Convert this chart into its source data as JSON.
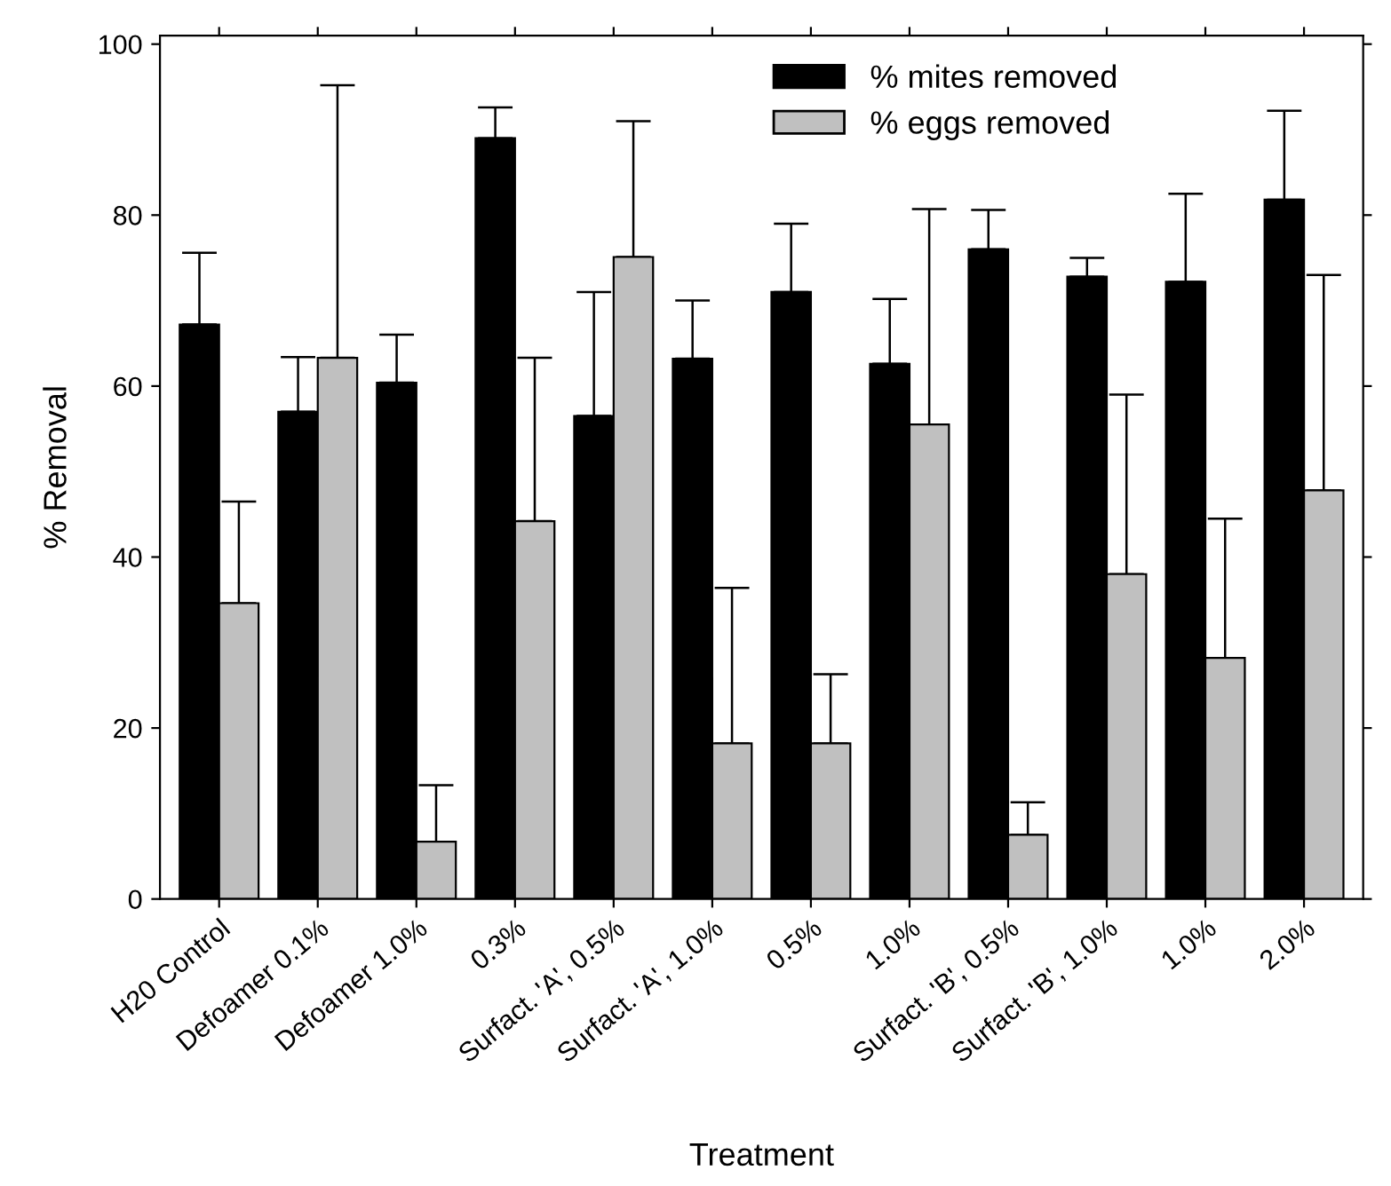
{
  "chart_data": {
    "type": "bar",
    "xlabel": "Treatment",
    "ylabel": "% Removal",
    "categories": [
      "H20 Control",
      "Defoamer 0.1%",
      "Defoamer 1.0%",
      "0.3%",
      "Surfact. 'A', 0.5%",
      "Surfact. 'A', 1.0%",
      "0.5%",
      "1.0%",
      "Surfact. 'B', 0.5%",
      "Surfact. 'B', 1.0%",
      "1.0%",
      "2.0%"
    ],
    "series": [
      {
        "name": "% mites removed",
        "color": "#000000",
        "values": [
          67.2,
          57.0,
          60.4,
          89.0,
          56.5,
          63.2,
          71.0,
          62.6,
          76.0,
          72.8,
          72.2,
          81.8
        ],
        "errors": [
          [
            67.2,
            75.6
          ],
          [
            57.0,
            63.4
          ],
          [
            60.4,
            66.0
          ],
          [
            89.0,
            92.6
          ],
          [
            56.5,
            71.0
          ],
          [
            63.2,
            70.0
          ],
          [
            71.0,
            79.0
          ],
          [
            62.6,
            70.2
          ],
          [
            76.0,
            80.6
          ],
          [
            72.8,
            75.0
          ],
          [
            72.2,
            82.5
          ],
          [
            81.8,
            92.2
          ]
        ]
      },
      {
        "name": "% eggs removed",
        "color": "#c0c0c0",
        "values": [
          34.6,
          63.3,
          6.7,
          44.2,
          75.1,
          18.2,
          18.2,
          55.5,
          7.5,
          38.0,
          28.2,
          47.8
        ],
        "errors": [
          [
            34.6,
            46.5
          ],
          [
            63.3,
            95.2
          ],
          [
            6.7,
            13.3
          ],
          [
            44.2,
            63.3
          ],
          [
            75.1,
            91.0
          ],
          [
            18.2,
            36.4
          ],
          [
            18.2,
            26.3
          ],
          [
            55.5,
            80.7
          ],
          [
            7.5,
            11.3
          ],
          [
            38.0,
            59.0
          ],
          [
            28.2,
            44.5
          ],
          [
            47.8,
            73.0
          ]
        ]
      }
    ],
    "ylim": [
      0,
      101
    ],
    "yticks": [
      0,
      20,
      40,
      60,
      80,
      100
    ],
    "grid": false,
    "legend": "top right"
  }
}
